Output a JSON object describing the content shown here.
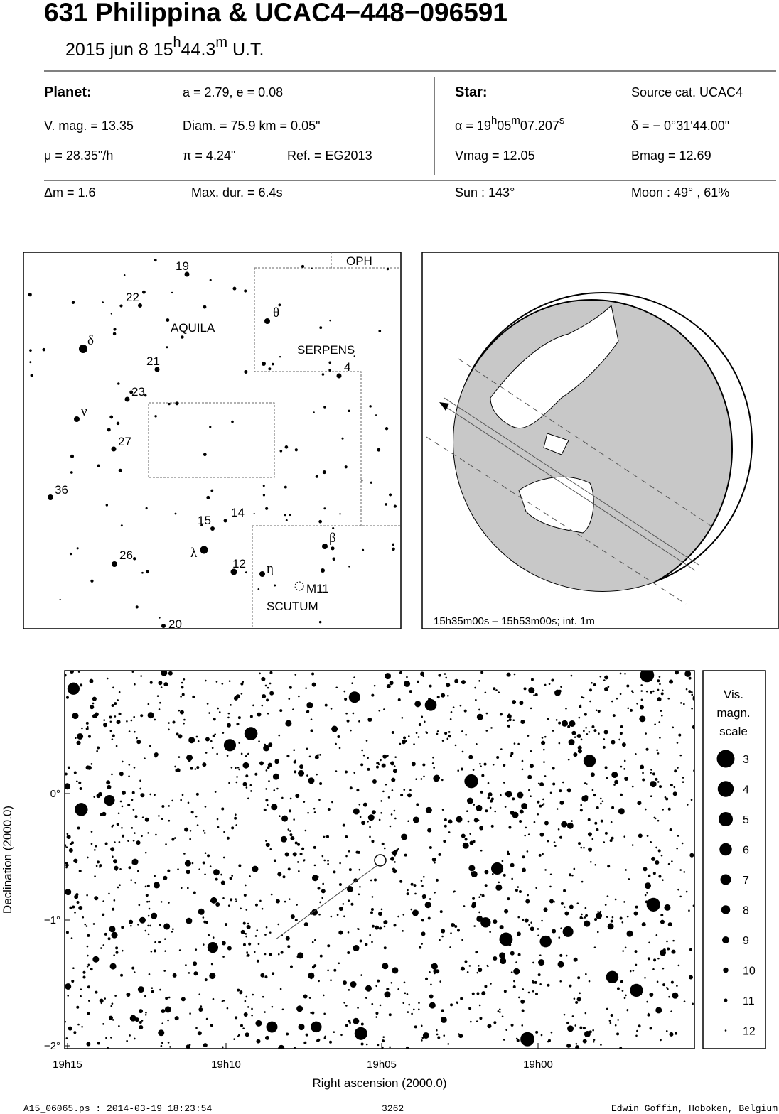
{
  "header": {
    "title": "631 Philippina  &  UCAC4−448−096591",
    "date_parts": [
      "2015 jun  8  15",
      "h",
      "44.3",
      "m",
      " U.T."
    ]
  },
  "info": {
    "planet_label": "Planet:",
    "orbit": "a = 2.79, e = 0.08",
    "vmag": "V. mag. = 13.35",
    "diam": "Diam. = 75.9 km = 0.05\"",
    "mu": "μ =  28.35\"/h",
    "pi": "π =  4.24\"",
    "ref": "Ref. = EG2013",
    "star_label": "Star:",
    "source": "Source cat.  UCAC4",
    "alpha_parts": [
      "α = 19",
      "h",
      "05",
      "m",
      "07.207",
      "s"
    ],
    "delta": "δ = − 0°31'44.00\"",
    "vmag_star": "Vmag = 12.05",
    "bmag": "Bmag = 12.69",
    "dm": "Δm = 1.6",
    "maxdur": "Max. dur. = 6.4s",
    "sun": "Sun : 143°",
    "moon": "Moon :  49° , 61%"
  },
  "finder": {
    "labels": [
      "19",
      "22",
      "AQUILA",
      "δ",
      "21",
      "23",
      "ν",
      "27",
      "36",
      "15",
      "14",
      "λ",
      "26",
      "12",
      "η",
      "β",
      "M11",
      "SCUTUM",
      "20",
      "θ",
      "SERPENS",
      "4",
      "OPH"
    ]
  },
  "globe": {
    "caption": "15h35m00s – 15h53m00s; int.  1m"
  },
  "field": {
    "y_label": "Declination (2000.0)",
    "x_label": "Right ascension (2000.0)",
    "x_ticks": [
      "19h15",
      "19h10",
      "19h05",
      "19h00"
    ],
    "y_ticks": [
      "0°",
      "−1°",
      "−2°"
    ],
    "scale_title": [
      "Vis.",
      "magn.",
      "scale"
    ],
    "scale_mags": [
      3,
      4,
      5,
      6,
      7,
      8,
      9,
      10,
      11,
      12
    ]
  },
  "footer": {
    "file": "A15_06065.ps : 2014-03-19 18:23:54",
    "number": "3262",
    "author": "Edwin Goffin, Hoboken, Belgium"
  }
}
